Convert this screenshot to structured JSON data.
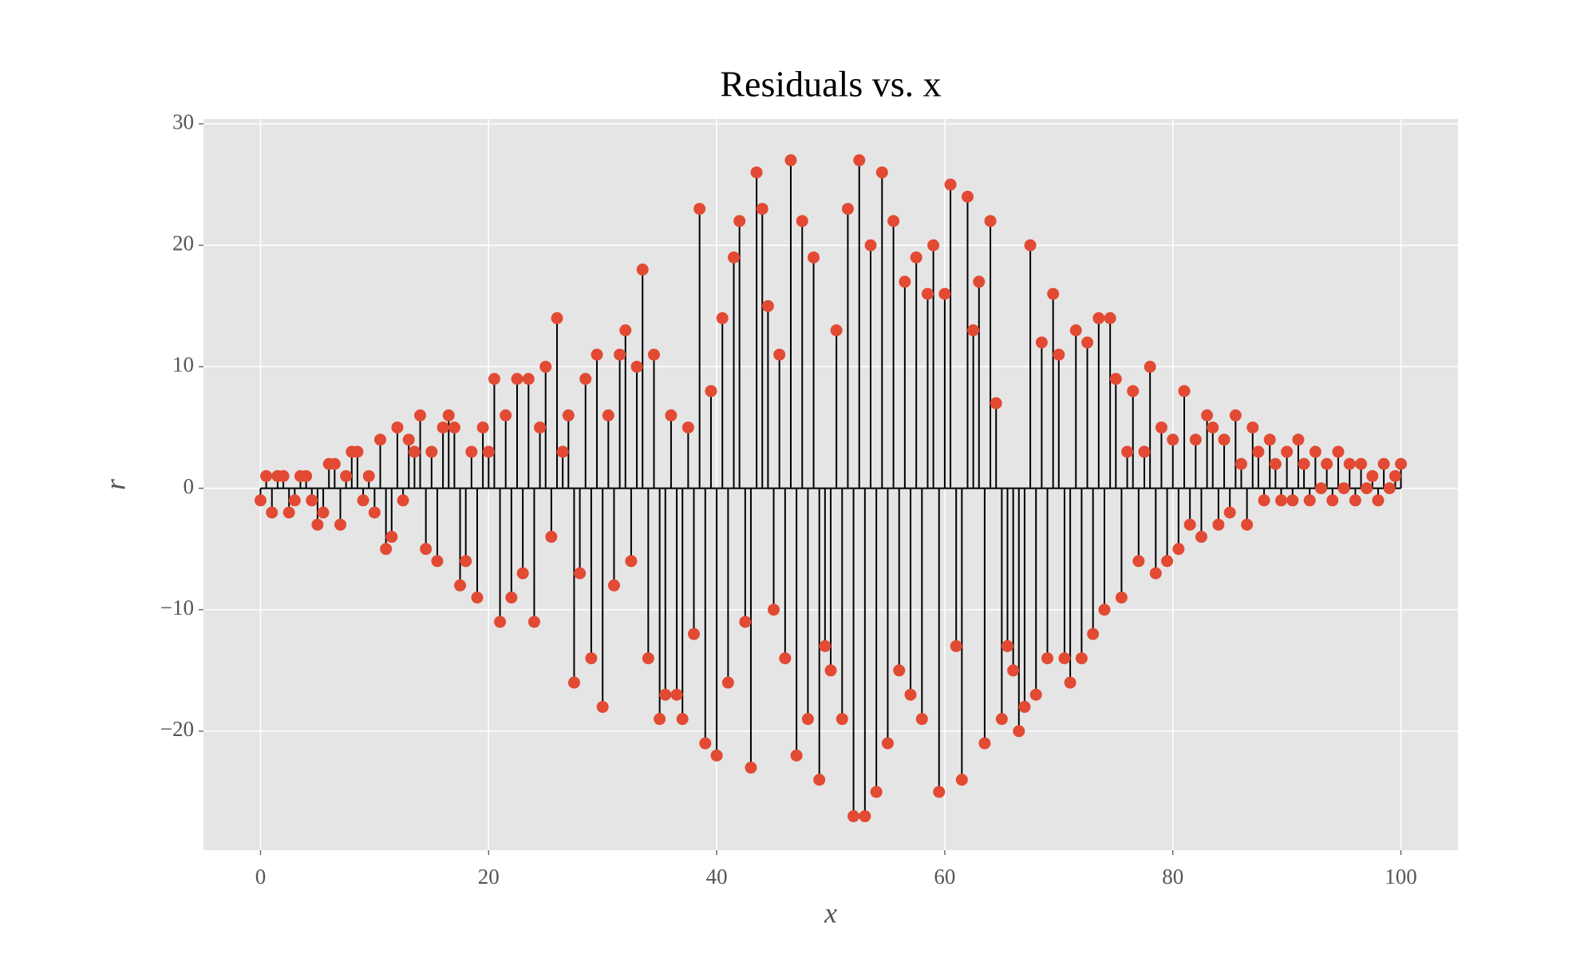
{
  "chart_data": {
    "type": "stem",
    "title": "Residuals vs. x",
    "xlabel": "x",
    "ylabel": "r",
    "marker_color": "#e24a33",
    "stem_color": "#000000",
    "grid": true,
    "xlim": [
      -5,
      105
    ],
    "ylim": [
      -29.8,
      30.4
    ],
    "xticks": [
      0,
      20,
      40,
      60,
      80,
      100
    ],
    "yticks": [
      {
        "value": -20,
        "label": "−20"
      },
      {
        "value": -10,
        "label": "−10"
      },
      0,
      10,
      20,
      30
    ],
    "x": [
      0,
      0.5,
      1,
      1.5,
      2,
      2.5,
      3,
      3.5,
      4,
      4.5,
      5,
      5.5,
      6,
      6.5,
      7,
      7.5,
      8,
      8.5,
      9,
      9.5,
      10,
      10.5,
      11,
      11.5,
      12,
      12.5,
      13,
      13.5,
      14,
      14.5,
      15,
      15.5,
      16,
      16.5,
      17,
      17.5,
      18,
      18.5,
      19,
      19.5,
      20,
      20.5,
      21,
      21.5,
      22,
      22.5,
      23,
      23.5,
      24,
      24.5,
      25,
      25.5,
      26,
      26.5,
      27,
      27.5,
      28,
      28.5,
      29,
      29.5,
      30,
      30.5,
      31,
      31.5,
      32,
      32.5,
      33,
      33.5,
      34,
      34.5,
      35,
      35.5,
      36,
      36.5,
      37,
      37.5,
      38,
      38.5,
      39,
      39.5,
      40,
      40.5,
      41,
      41.5,
      42,
      42.5,
      43,
      43.5,
      44,
      44.5,
      45,
      45.5,
      46,
      46.5,
      47,
      47.5,
      48,
      48.5,
      49,
      49.5,
      50,
      50.5,
      51,
      51.5,
      52,
      52.5,
      53,
      53.5,
      54,
      54.5,
      55,
      55.5,
      56,
      56.5,
      57,
      57.5,
      58,
      58.5,
      59,
      59.5,
      60,
      60.5,
      61,
      61.5,
      62,
      62.5,
      63,
      63.5,
      64,
      64.5,
      65,
      65.5,
      66,
      66.5,
      67,
      67.5,
      68,
      68.5,
      69,
      69.5,
      70,
      70.5,
      71,
      71.5,
      72,
      72.5,
      73,
      73.5,
      74,
      74.5,
      75,
      75.5,
      76,
      76.5,
      77,
      77.5,
      78,
      78.5,
      79,
      79.5,
      80,
      80.5,
      81,
      81.5,
      82,
      82.5,
      83,
      83.5,
      84,
      84.5,
      85,
      85.5,
      86,
      86.5,
      87,
      87.5,
      88,
      88.5,
      89,
      89.5,
      90,
      90.5,
      91,
      91.5,
      92,
      92.5,
      93,
      93.5,
      94,
      94.5,
      95,
      95.5,
      96,
      96.5,
      97,
      97.5,
      98,
      98.5,
      99,
      99.5,
      100
    ],
    "values": [
      -1,
      1,
      -2,
      1,
      1,
      -2,
      -1,
      1,
      1,
      -1,
      -3,
      -2,
      2,
      2,
      -3,
      1,
      3,
      3,
      -1,
      1,
      -2,
      4,
      -5,
      -4,
      5,
      -1,
      4,
      3,
      6,
      -5,
      3,
      -6,
      5,
      6,
      5,
      -8,
      -6,
      3,
      -9,
      5,
      3,
      9,
      -11,
      6,
      -9,
      9,
      -7,
      9,
      -11,
      5,
      10,
      -4,
      14,
      3,
      6,
      -16,
      -7,
      9,
      -14,
      11,
      -18,
      6,
      -8,
      11,
      13,
      -6,
      10,
      18,
      -14,
      11,
      -19,
      -17,
      6,
      -17,
      -19,
      5,
      -12,
      23,
      -21,
      8,
      -22,
      14,
      -16,
      19,
      22,
      -11,
      -23,
      26,
      23,
      15,
      -10,
      11,
      -14,
      27,
      -22,
      22,
      -19,
      19,
      -24,
      -13,
      -15,
      13,
      -19,
      23,
      -27,
      27,
      -27,
      20,
      -25,
      26,
      -21,
      22,
      -15,
      17,
      -17,
      19,
      -19,
      16,
      20,
      -25,
      16,
      25,
      -13,
      -24,
      24,
      13,
      17,
      -21,
      22,
      7,
      -19,
      -13,
      -15,
      -20,
      -18,
      20,
      -17,
      12,
      -14,
      16,
      11,
      -14,
      -16,
      13,
      -14,
      12,
      -12,
      14,
      -10,
      14,
      9,
      -9,
      3,
      8,
      -6,
      3,
      10,
      -7,
      5,
      -6,
      4,
      -5,
      8,
      -3,
      4,
      -4,
      6,
      5,
      -3,
      4,
      -2,
      6,
      2,
      -3,
      5,
      3,
      -1,
      4,
      2,
      -1,
      3,
      -1,
      4,
      2,
      -1,
      3,
      0,
      2,
      -1,
      3,
      0,
      2,
      -1,
      2,
      0,
      1,
      -1,
      2,
      0,
      1,
      2
    ]
  }
}
